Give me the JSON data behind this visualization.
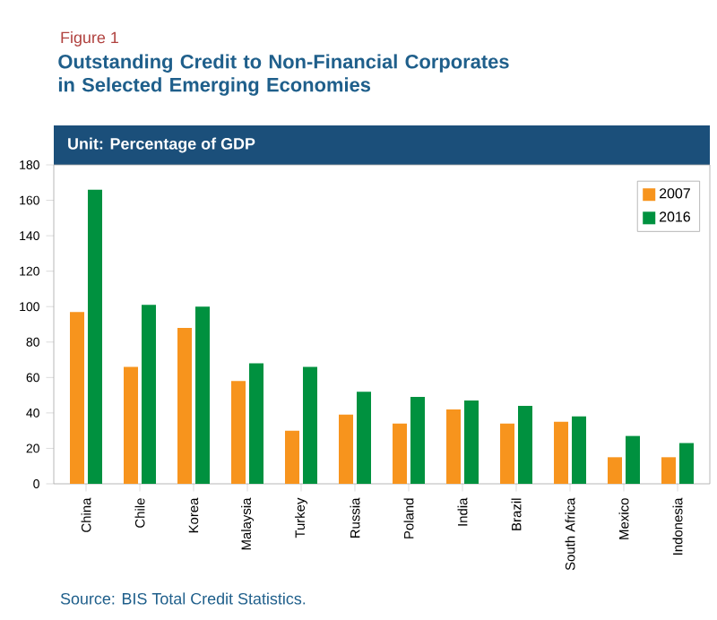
{
  "chart_data": {
    "type": "bar",
    "title": "Outstanding Credit to Non-Financial Corporates in Selected Emerging Economies",
    "subtitle": "Unit: Percentage of GDP",
    "categories": [
      "China",
      "Chile",
      "Korea",
      "Malaysia",
      "Turkey",
      "Russia",
      "Poland",
      "India",
      "Brazil",
      "South Africa",
      "Mexico",
      "Indonesia"
    ],
    "series": [
      {
        "name": "2007",
        "color": "#f7941d",
        "values": [
          97,
          66,
          88,
          58,
          30,
          39,
          34,
          42,
          34,
          35,
          15,
          15
        ]
      },
      {
        "name": "2016",
        "color": "#00913f",
        "values": [
          166,
          101,
          100,
          68,
          66,
          52,
          49,
          47,
          44,
          38,
          27,
          23
        ]
      }
    ],
    "ylim": [
      0,
      180
    ],
    "yticks": [
      0,
      20,
      40,
      60,
      80,
      100,
      120,
      140,
      160,
      180
    ],
    "legend": "top right",
    "annotations": [
      "Figure 1",
      "Source: BIS Total Credit Statistics."
    ]
  }
}
